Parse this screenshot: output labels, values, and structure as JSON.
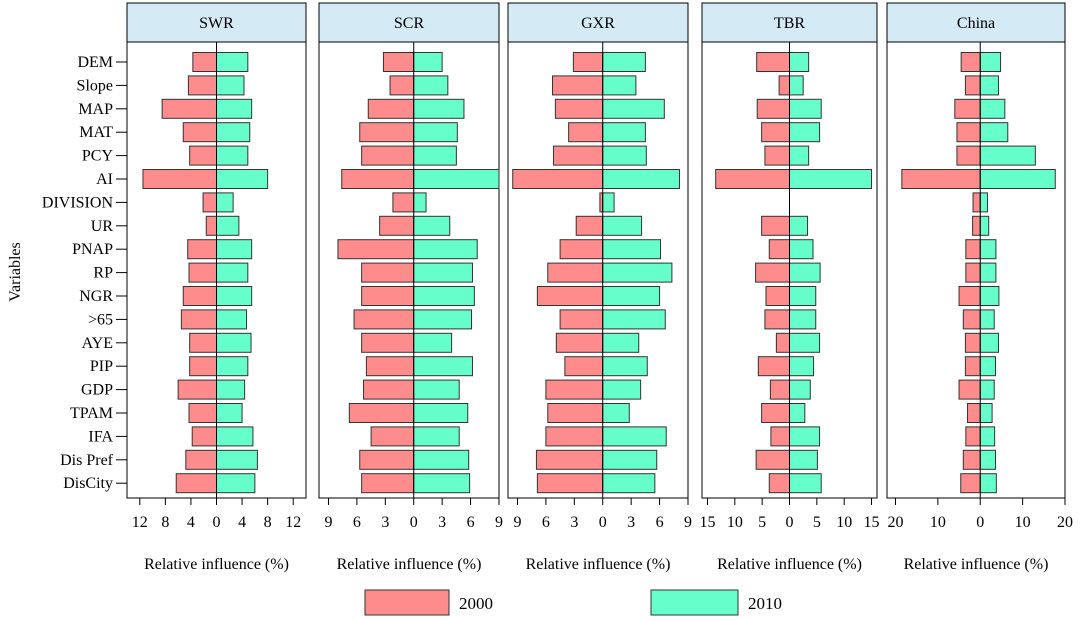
{
  "chart_data": {
    "type": "bar",
    "ylabel": "Variables",
    "xlabel": "Relative influence (%)",
    "variables": [
      "DEM",
      "Slope",
      "MAP",
      "MAT",
      "PCY",
      "AI",
      "DIVISION",
      "UR",
      "PNAP",
      "RP",
      "NGR",
      ">65",
      "AYE",
      "PIP",
      "GDP",
      "TPAM",
      "IFA",
      "Dis Pref",
      "DisCity"
    ],
    "legend": [
      "2000",
      "2010"
    ],
    "colors": {
      "2000": "#ff8c8c",
      "2010": "#66ffcc"
    },
    "panels": [
      {
        "title": "SWR",
        "xlim": [
          -14,
          14
        ],
        "ticks": [
          -12,
          -8,
          -4,
          0,
          4,
          8,
          12
        ],
        "tick_labels": [
          "12",
          "8",
          "4",
          "0",
          "4",
          "8",
          "12"
        ],
        "values_2000": [
          3.7,
          4.4,
          8.5,
          5.2,
          4.2,
          11.5,
          2.1,
          1.6,
          4.5,
          4.3,
          5.2,
          5.5,
          4.2,
          4.2,
          6.0,
          4.3,
          3.8,
          4.8,
          6.3
        ],
        "values_2010": [
          4.9,
          4.3,
          5.5,
          5.2,
          4.9,
          8.0,
          2.6,
          3.5,
          5.5,
          4.9,
          5.5,
          4.7,
          5.4,
          4.9,
          4.4,
          4.0,
          5.7,
          6.4,
          6.0
        ]
      },
      {
        "title": "SCR",
        "xlim": [
          -10,
          9
        ],
        "ticks": [
          -9,
          -6,
          -3,
          0,
          3,
          6,
          9
        ],
        "tick_labels": [
          "9",
          "6",
          "3",
          "0",
          "3",
          "6",
          "9"
        ],
        "values_2000": [
          3.2,
          2.5,
          4.8,
          5.7,
          5.5,
          7.6,
          2.2,
          3.6,
          8.0,
          5.5,
          5.5,
          6.3,
          5.5,
          5.0,
          5.3,
          6.8,
          4.5,
          5.7,
          5.5
        ],
        "values_2010": [
          3.0,
          3.6,
          5.3,
          4.6,
          4.5,
          9.0,
          1.3,
          3.8,
          6.7,
          6.2,
          6.4,
          6.1,
          4.0,
          6.2,
          4.8,
          5.7,
          4.8,
          5.8,
          5.9
        ]
      },
      {
        "title": "GXR",
        "xlim": [
          -10,
          9
        ],
        "ticks": [
          -9,
          -6,
          -3,
          0,
          3,
          6,
          9
        ],
        "tick_labels": [
          "9",
          "6",
          "3",
          "0",
          "3",
          "6",
          "9"
        ],
        "values_2000": [
          3.1,
          5.3,
          5.0,
          3.6,
          5.2,
          9.5,
          0.3,
          2.8,
          4.5,
          5.8,
          6.9,
          4.5,
          4.9,
          4.0,
          6.0,
          5.8,
          6.0,
          7.0,
          6.9
        ],
        "values_2010": [
          4.5,
          3.5,
          6.5,
          4.5,
          4.6,
          8.1,
          1.2,
          4.1,
          6.1,
          7.3,
          6.0,
          6.6,
          3.8,
          4.7,
          4.0,
          2.8,
          6.7,
          5.7,
          5.5
        ]
      },
      {
        "title": "TBR",
        "xlim": [
          -16,
          16
        ],
        "ticks": [
          -15,
          -10,
          -5,
          0,
          5,
          10,
          15
        ],
        "tick_labels": [
          "15",
          "10",
          "5",
          "0",
          "5",
          "10",
          "15"
        ],
        "values_2000": [
          6.0,
          1.9,
          5.9,
          5.1,
          4.5,
          13.5,
          0.0,
          5.1,
          3.7,
          6.2,
          4.3,
          4.5,
          2.4,
          5.7,
          3.5,
          5.1,
          3.4,
          6.1,
          3.7
        ],
        "values_2010": [
          3.5,
          2.5,
          5.8,
          5.5,
          3.5,
          15.0,
          0.0,
          3.3,
          4.3,
          5.6,
          4.8,
          4.8,
          5.5,
          4.4,
          3.8,
          2.8,
          5.5,
          5.1,
          5.8
        ]
      },
      {
        "title": "China",
        "xlim": [
          -22,
          20
        ],
        "ticks": [
          -20,
          -10,
          0,
          10,
          20
        ],
        "tick_labels": [
          "20",
          "10",
          "0",
          "10",
          "20"
        ],
        "values_2000": [
          4.5,
          3.5,
          6.0,
          5.5,
          5.5,
          18.5,
          1.7,
          1.8,
          3.4,
          3.4,
          5.0,
          4.0,
          3.5,
          3.5,
          5.0,
          3.0,
          3.4,
          4.0,
          4.6
        ],
        "values_2010": [
          4.8,
          4.3,
          5.8,
          6.5,
          13.0,
          17.7,
          1.7,
          2.0,
          3.7,
          3.7,
          4.4,
          3.3,
          4.3,
          3.6,
          3.3,
          2.8,
          3.4,
          3.6,
          3.8
        ]
      }
    ]
  }
}
